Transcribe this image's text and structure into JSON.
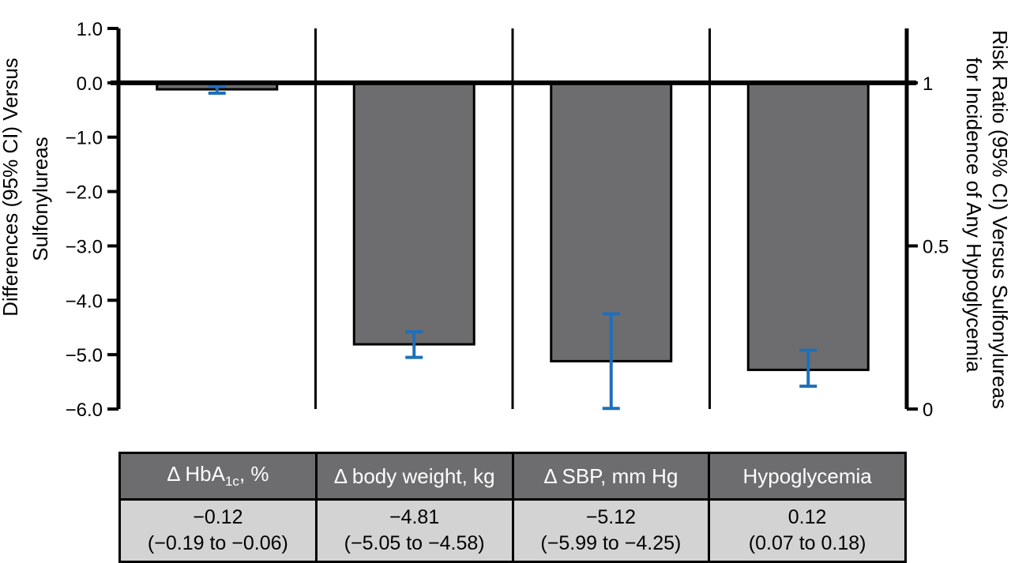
{
  "chart_data": {
    "type": "bar",
    "title": "",
    "left_axis": {
      "label_line1": "Differences (95% CI) Versus",
      "label_line2": "Sulfonylureas",
      "ylim": [
        -6.0,
        1.0
      ],
      "ticks": [
        "1.0",
        "0.0",
        "−1.0",
        "−2.0",
        "−3.0",
        "−4.0",
        "−5.0",
        "−6.0"
      ]
    },
    "right_axis": {
      "label_line1": "Risk Ratio (95% CI) Versus Sulfonylureas",
      "label_line2": "for Incidence of Any Hypoglycemia",
      "ylim": [
        0,
        1.2
      ],
      "ticks": [
        "1",
        "0.5",
        "0"
      ]
    },
    "categories": [
      "Δ HbA1c, %",
      "Δ body weight, kg",
      "Δ SBP, mm Hg",
      "Hypoglycemia"
    ],
    "bars": [
      {
        "axis": "left",
        "value": -0.12,
        "ci_low": -0.19,
        "ci_high": -0.06
      },
      {
        "axis": "left",
        "value": -4.81,
        "ci_low": -5.05,
        "ci_high": -4.58
      },
      {
        "axis": "left",
        "value": -5.12,
        "ci_low": -5.99,
        "ci_high": -4.25
      },
      {
        "axis": "right",
        "value": 0.12,
        "ci_low": 0.07,
        "ci_high": 0.18
      }
    ],
    "colors": {
      "bar": "#6d6d6f",
      "error_bar": "#1f6fba",
      "header_bg": "#6d6d6f",
      "cell_bg": "#d3d3d4"
    }
  },
  "table": {
    "headers": [
      {
        "prefix": "Δ HbA",
        "sub": "1c",
        "suffix": ", %"
      },
      {
        "text": "Δ body weight, kg"
      },
      {
        "text": "Δ SBP, mm Hg"
      },
      {
        "text": "Hypoglycemia"
      }
    ],
    "cells": [
      {
        "value": "−0.12",
        "ci": "(−0.19 to −0.06)"
      },
      {
        "value": "−4.81",
        "ci": "(−5.05 to −4.58)"
      },
      {
        "value": "−5.12",
        "ci": "(−5.99 to −4.25)"
      },
      {
        "value": "0.12",
        "ci": "(0.07 to 0.18)"
      }
    ]
  }
}
